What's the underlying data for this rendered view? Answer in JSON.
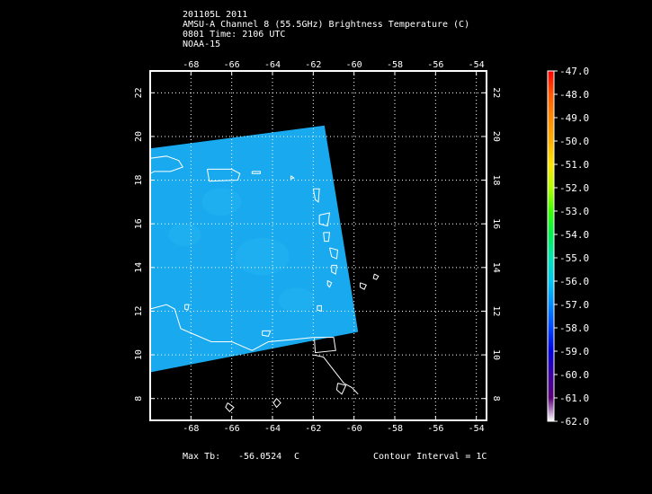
{
  "header": {
    "line1": "201105L 2011",
    "line2": "AMSU-A Channel 8 (55.5GHz) Brightness Temperature (C)",
    "line3": "0801 Time: 2106 UTC",
    "line4": "NOAA-15"
  },
  "map": {
    "lon_range": [
      -70,
      -53.5
    ],
    "lat_range": [
      7,
      23
    ],
    "lon_ticks": [
      "-68",
      "-66",
      "-64",
      "-62",
      "-60",
      "-58",
      "-56",
      "-54"
    ],
    "lon_tick_values": [
      -68,
      -66,
      -64,
      -62,
      -60,
      -58,
      -56,
      -54
    ],
    "lat_ticks": [
      "8",
      "10",
      "12",
      "14",
      "16",
      "18",
      "20",
      "22"
    ],
    "lat_tick_values": [
      8,
      10,
      12,
      14,
      16,
      18,
      20,
      22
    ],
    "grid": "dotted",
    "swath_color": "#19a9ee",
    "coast_color": "#ffffff",
    "background": "#000000"
  },
  "colorbar": {
    "labels": [
      "-47.0",
      "-48.0",
      "-49.0",
      "-50.0",
      "-51.0",
      "-52.0",
      "-53.0",
      "-54.0",
      "-55.0",
      "-56.0",
      "-57.0",
      "-58.0",
      "-59.0",
      "-60.0",
      "-61.0",
      "-62.0"
    ],
    "values": [
      -47,
      -48,
      -49,
      -50,
      -51,
      -52,
      -53,
      -54,
      -55,
      -56,
      -57,
      -58,
      -59,
      -60,
      -61,
      -62
    ],
    "colors": [
      "#ff0000",
      "#ff5a00",
      "#ff8a00",
      "#ffb000",
      "#ffe600",
      "#b4ff00",
      "#3cff00",
      "#00f050",
      "#00e6b4",
      "#00c8f0",
      "#008cff",
      "#0046ff",
      "#0000dc",
      "#3c00a0",
      "#5a0078",
      "#ffffff"
    ]
  },
  "footer": {
    "max_tb_label": "Max Tb:",
    "max_tb_value": "-56.0524",
    "max_tb_unit": "C",
    "contour": "Contour Interval = 1C"
  }
}
